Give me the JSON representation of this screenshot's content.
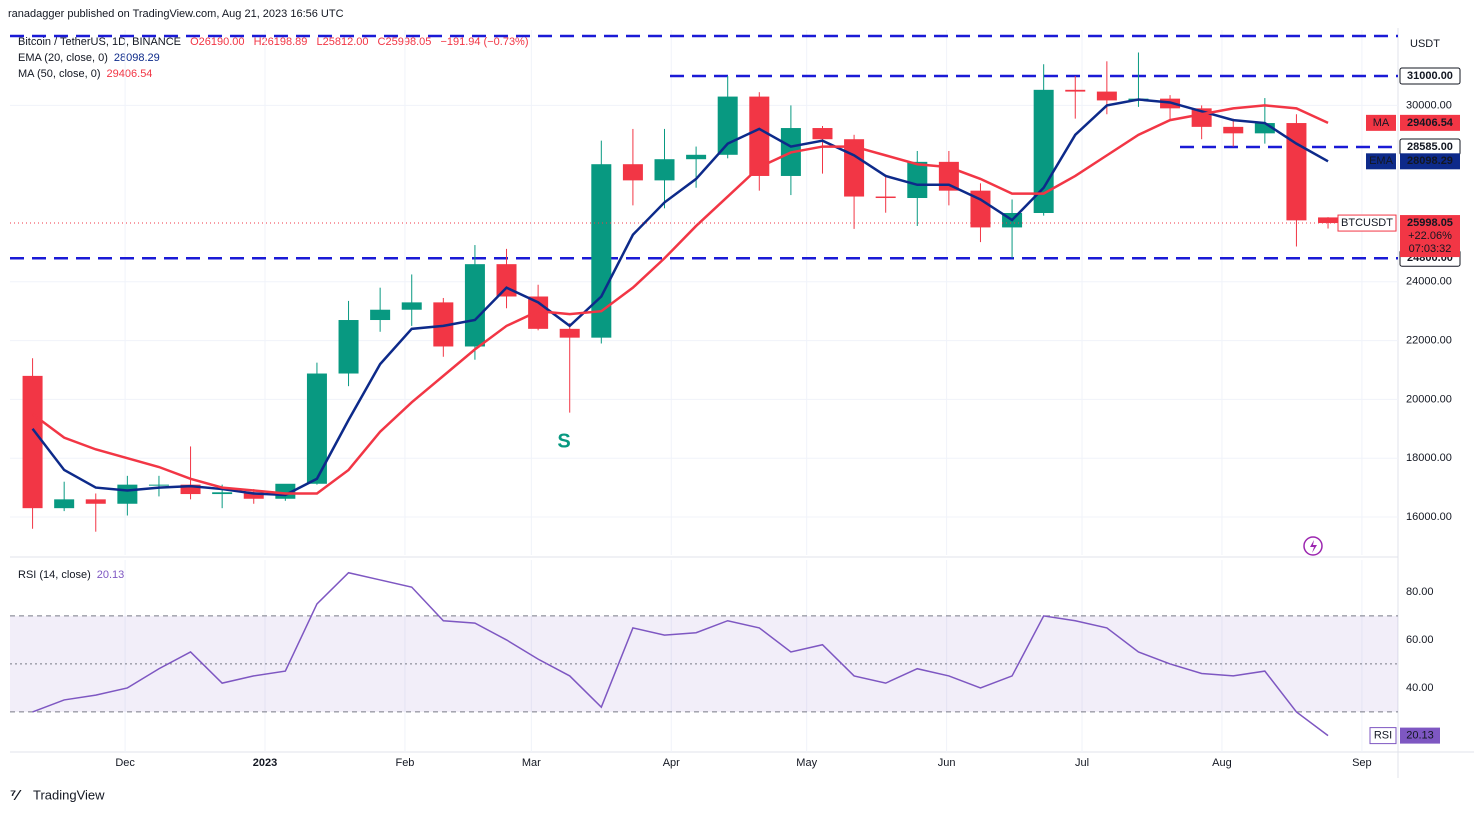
{
  "header": {
    "publisher": "ranadagger published on TradingView.com, Aug 21, 2023 16:56 UTC",
    "brand": "TradingView"
  },
  "chart_data": {
    "type": "candlestick",
    "title": "Bitcoin / TetherUS, 1D, BINANCE",
    "ohlc_labels": [
      "O26190.00",
      "H26198.89",
      "L25812.00",
      "C25998.05",
      "−191.94 (−0.73%)"
    ],
    "currency": "USDT",
    "up_color": "#089981",
    "down_color": "#f23645",
    "open": [
      20800,
      16300,
      16600,
      16450,
      17100,
      17100,
      16780,
      16840,
      16620,
      17130,
      20880,
      22700,
      23050,
      23300,
      21800,
      24600,
      23500,
      22400,
      22100,
      28000,
      27450,
      28170,
      28320,
      30300,
      27600,
      29230,
      28850,
      26900,
      26850,
      28080,
      27100,
      25850,
      26340,
      30530,
      30470,
      30170,
      30230,
      29900,
      29270,
      29050,
      29400,
      26190
    ],
    "high": [
      21400,
      17200,
      16800,
      17400,
      17400,
      18400,
      17100,
      16950,
      17050,
      21250,
      23350,
      23800,
      24250,
      23450,
      25250,
      25120,
      23900,
      22600,
      28800,
      29200,
      29200,
      28600,
      31000,
      30450,
      30000,
      29300,
      29000,
      27650,
      28450,
      28450,
      27350,
      26800,
      31400,
      31000,
      31500,
      31800,
      30350,
      30000,
      29550,
      30250,
      29700,
      26198.89
    ],
    "low": [
      15600,
      16200,
      15500,
      16050,
      16700,
      16600,
      16300,
      16450,
      16550,
      17100,
      20450,
      22300,
      22500,
      21450,
      21350,
      23100,
      22350,
      19550,
      21900,
      26600,
      26500,
      27200,
      28200,
      27100,
      26950,
      27680,
      25800,
      26350,
      25900,
      26600,
      25350,
      24800,
      26250,
      29550,
      29700,
      29950,
      29500,
      28850,
      28600,
      28700,
      25200,
      25812
    ],
    "close": [
      16300,
      16600,
      16450,
      17100,
      17100,
      16780,
      16840,
      16620,
      17130,
      20880,
      22700,
      23050,
      23300,
      21800,
      24600,
      23500,
      22400,
      22100,
      28000,
      27450,
      28170,
      28320,
      30300,
      27600,
      29230,
      28850,
      26900,
      26850,
      28080,
      27100,
      25850,
      26340,
      30530,
      30470,
      30170,
      30230,
      29900,
      29270,
      29050,
      29400,
      26090,
      25998.05
    ],
    "xlim": [
      4.5,
      312
    ],
    "xticks": [
      {
        "value": 30,
        "label": "Dec"
      },
      {
        "value": 61,
        "label": "2023"
      },
      {
        "value": 92,
        "label": "Feb"
      },
      {
        "value": 120,
        "label": "Mar"
      },
      {
        "value": 151,
        "label": "Apr"
      },
      {
        "value": 181,
        "label": "May"
      },
      {
        "value": 212,
        "label": "Jun"
      },
      {
        "value": 242,
        "label": "Jul"
      },
      {
        "value": 273,
        "label": "Aug"
      },
      {
        "value": 304,
        "label": "Sep"
      }
    ],
    "ylim": [
      14707,
      32565
    ],
    "yticks": [
      {
        "value": 16000,
        "label": "16000.00"
      },
      {
        "value": 18000,
        "label": "18000.00"
      },
      {
        "value": 20000,
        "label": "20000.00"
      },
      {
        "value": 22000,
        "label": "22000.00"
      },
      {
        "value": 24000,
        "label": "24000.00"
      },
      {
        "value": 30000,
        "label": "30000.00"
      }
    ],
    "series": [
      {
        "name": "EMA (20, close, 0)",
        "short": "EMA",
        "value_label": "28098.29",
        "color": "#0d2a8a",
        "values": [
          19000,
          17600,
          17000,
          16900,
          17000,
          17050,
          16950,
          16800,
          16750,
          17300,
          19300,
          21200,
          22400,
          22500,
          22700,
          23800,
          23300,
          22500,
          23500,
          25600,
          26700,
          27500,
          28700,
          29200,
          28600,
          28800,
          28300,
          27600,
          27300,
          27300,
          26800,
          26100,
          27200,
          29000,
          30000,
          30200,
          30100,
          29800,
          29500,
          29400,
          28700,
          28098.29
        ]
      },
      {
        "name": "MA (50, close, 0)",
        "short": "MA",
        "value_label": "29406.54",
        "color": "#f23645",
        "values": [
          19500,
          18700,
          18300,
          18000,
          17700,
          17300,
          17000,
          16900,
          16800,
          16800,
          17600,
          18900,
          19900,
          20800,
          21700,
          22500,
          23000,
          22900,
          23000,
          23800,
          24800,
          25900,
          26900,
          27900,
          28400,
          28600,
          28600,
          28300,
          28000,
          27900,
          27500,
          27000,
          27000,
          27600,
          28300,
          29000,
          29500,
          29700,
          29900,
          30000,
          29900,
          29406.54
        ]
      }
    ],
    "levels": [
      32360,
      {
        "value": 31000,
        "label": "31000.00"
      },
      {
        "value": 28585,
        "label": "28585.00"
      },
      {
        "value": 24800,
        "label": "24800.00"
      }
    ],
    "level_color": "#1a1ad6",
    "last_price": {
      "symbol": "BTCUSDT",
      "price": "25998.05",
      "change": "+22.06%",
      "countdown": "07:03:32"
    },
    "annotation": "S",
    "rsi": {
      "name": "RSI (14, close)",
      "short": "RSI",
      "value_label": "20.13",
      "color": "#7e57c2",
      "values": [
        30,
        35,
        37,
        40,
        48,
        55,
        42,
        45,
        47,
        75,
        88,
        85,
        82,
        68,
        67,
        60,
        52,
        45,
        32,
        65,
        62,
        63,
        68,
        65,
        55,
        58,
        45,
        42,
        48,
        45,
        40,
        45,
        70,
        68,
        65,
        55,
        50,
        46,
        45,
        47,
        30,
        20.13
      ],
      "ylim": [
        13.3,
        93.3
      ],
      "yticks": [
        {
          "value": 40,
          "label": "40.00"
        },
        {
          "value": 60,
          "label": "60.00"
        },
        {
          "value": 80,
          "label": "80.00"
        }
      ],
      "bands": [
        30,
        50,
        70
      ]
    }
  }
}
